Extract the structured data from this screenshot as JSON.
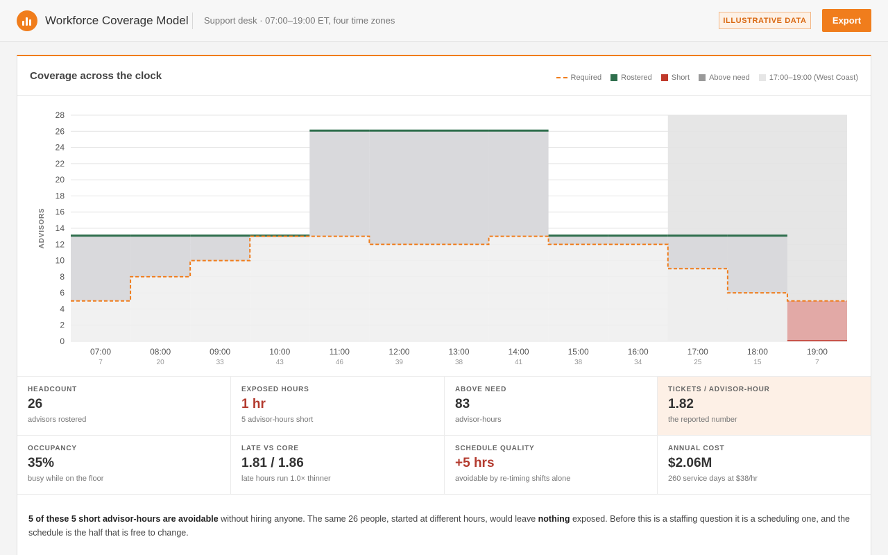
{
  "header": {
    "app_title": "Workforce Coverage Model",
    "subtitle": "Support desk · 07:00–19:00 ET, four time zones",
    "badge": "ILLUSTRATIVE DATA",
    "export_label": "Export"
  },
  "panel": {
    "title": "Coverage across the clock",
    "legend": [
      {
        "label": "Required",
        "style": "dashed",
        "color": "#f07d1c"
      },
      {
        "label": "Rostered",
        "style": "swatch",
        "color": "#2e6e4c"
      },
      {
        "label": "Short",
        "style": "swatch",
        "color": "#c0392b"
      },
      {
        "label": "Above need",
        "style": "swatch",
        "color": "#999999"
      },
      {
        "label": "17:00–19:00 (West Coast)",
        "style": "swatch",
        "color": "#e6e6e6"
      }
    ]
  },
  "chart_data": {
    "type": "line",
    "step": true,
    "ylabel": "ADVISORS",
    "ylim": [
      0,
      28
    ],
    "yticks": [
      0,
      2,
      4,
      6,
      8,
      10,
      12,
      14,
      16,
      18,
      20,
      22,
      24,
      26,
      28
    ],
    "categories": [
      "07:00",
      "08:00",
      "09:00",
      "10:00",
      "11:00",
      "12:00",
      "13:00",
      "14:00",
      "15:00",
      "16:00",
      "17:00",
      "18:00",
      "19:00"
    ],
    "tickets": [
      7,
      20,
      33,
      43,
      46,
      39,
      38,
      41,
      38,
      34,
      25,
      15,
      7
    ],
    "series": [
      {
        "name": "Required",
        "values": [
          5,
          8,
          10,
          13,
          13,
          12,
          12,
          13,
          12,
          12,
          9,
          6,
          5
        ]
      },
      {
        "name": "Rostered",
        "values": [
          13,
          13,
          13,
          13,
          26,
          26,
          26,
          26,
          13,
          13,
          13,
          13,
          0
        ]
      }
    ],
    "highlight_range": [
      "17:00",
      "19:00"
    ],
    "highlight_label": "17:00–19:00 (West Coast)",
    "grid": true,
    "legend_position": "top-right"
  },
  "stats": [
    {
      "label": "HEADCOUNT",
      "value": "26",
      "note": "advisors rostered",
      "tone": "normal"
    },
    {
      "label": "EXPOSED HOURS",
      "value": "1 hr",
      "note": "5 advisor-hours short",
      "tone": "red"
    },
    {
      "label": "ABOVE NEED",
      "value": "83",
      "note": "advisor-hours",
      "tone": "normal"
    },
    {
      "label": "TICKETS / ADVISOR-HOUR",
      "value": "1.82",
      "note": "the reported number",
      "tone": "highlight"
    },
    {
      "label": "OCCUPANCY",
      "value": "35%",
      "note": "busy while on the floor",
      "tone": "normal"
    },
    {
      "label": "LATE VS CORE",
      "value": "1.81 / 1.86",
      "note": "late hours run 1.0× thinner",
      "tone": "normal"
    },
    {
      "label": "SCHEDULE QUALITY",
      "value": "+5 hrs",
      "note": "avoidable by re-timing shifts alone",
      "tone": "red"
    },
    {
      "label": "ANNUAL COST",
      "value": "$2.06M",
      "note": "260 service days at $38/hr",
      "tone": "normal"
    }
  ],
  "summary": {
    "bold1": "5 of these 5 short advisor-hours are avoidable",
    "text1": " without hiring anyone. The same 26 people, started at different hours, would leave ",
    "bold2": "nothing",
    "text2": " exposed. Before this is a staffing question it is a scheduling one, and the schedule is the half that is free to change."
  },
  "colors": {
    "accent": "#f07d1c",
    "rostered": "#2e6e4c",
    "short": "#c0392b",
    "short_fill": "#e2a9a6",
    "above_fill": "#d9d9dc",
    "highlight_band": "#e6e6e6",
    "below_fill": "#efefef"
  }
}
